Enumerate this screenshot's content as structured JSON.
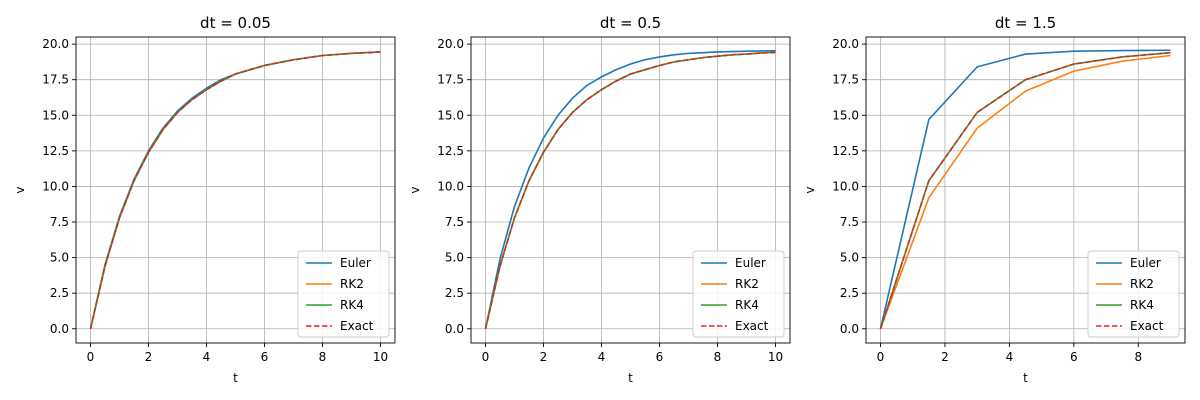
{
  "chart_data": [
    {
      "type": "line",
      "title": "dt = 0.05",
      "xlabel": "t",
      "ylabel": "v",
      "xlim": [
        -0.5,
        10.5
      ],
      "ylim": [
        -1.0,
        20.5
      ],
      "x_ticks": [
        0,
        2,
        4,
        6,
        8,
        10
      ],
      "x_tick_labels": [
        "0",
        "2",
        "4",
        "6",
        "8",
        "10"
      ],
      "y_ticks": [
        0,
        2.5,
        5,
        7.5,
        10,
        12.5,
        15,
        17.5,
        20
      ],
      "y_tick_labels": [
        "0.0",
        "2.5",
        "5.0",
        "7.5",
        "10.0",
        "12.5",
        "15.0",
        "17.5",
        "20.0"
      ],
      "grid": true,
      "legend_position": "lower right",
      "series": [
        {
          "name": "Euler",
          "color": "#1f77b4",
          "style": "solid",
          "x": [
            0,
            0.5,
            1,
            1.5,
            2,
            2.5,
            3,
            3.5,
            4,
            4.5,
            5,
            6,
            7,
            8,
            9,
            10
          ],
          "y": [
            0,
            4.5,
            7.9,
            10.5,
            12.5,
            14.1,
            15.3,
            16.2,
            16.9,
            17.5,
            17.9,
            18.5,
            18.9,
            19.2,
            19.35,
            19.45
          ]
        },
        {
          "name": "RK2",
          "color": "#ff7f0e",
          "style": "solid",
          "x": [
            0,
            0.5,
            1,
            1.5,
            2,
            2.5,
            3,
            3.5,
            4,
            4.5,
            5,
            6,
            7,
            8,
            9,
            10
          ],
          "y": [
            0,
            4.4,
            7.8,
            10.4,
            12.4,
            14.0,
            15.2,
            16.1,
            16.8,
            17.4,
            17.9,
            18.5,
            18.9,
            19.2,
            19.35,
            19.45
          ]
        },
        {
          "name": "RK4",
          "color": "#2ca02c",
          "style": "solid",
          "x": [
            0,
            0.5,
            1,
            1.5,
            2,
            2.5,
            3,
            3.5,
            4,
            4.5,
            5,
            6,
            7,
            8,
            9,
            10
          ],
          "y": [
            0,
            4.4,
            7.8,
            10.4,
            12.4,
            14.0,
            15.2,
            16.1,
            16.8,
            17.4,
            17.9,
            18.5,
            18.9,
            19.2,
            19.35,
            19.45
          ]
        },
        {
          "name": "Exact",
          "color": "#d62728",
          "style": "dashed",
          "x": [
            0,
            0.5,
            1,
            1.5,
            2,
            2.5,
            3,
            3.5,
            4,
            4.5,
            5,
            6,
            7,
            8,
            9,
            10
          ],
          "y": [
            0,
            4.4,
            7.8,
            10.4,
            12.4,
            14.0,
            15.2,
            16.1,
            16.8,
            17.4,
            17.9,
            18.5,
            18.9,
            19.2,
            19.35,
            19.45
          ]
        }
      ]
    },
    {
      "type": "line",
      "title": "dt = 0.5",
      "xlabel": "t",
      "ylabel": "v",
      "xlim": [
        -0.5,
        10.5
      ],
      "ylim": [
        -1.0,
        20.5
      ],
      "x_ticks": [
        0,
        2,
        4,
        6,
        8,
        10
      ],
      "x_tick_labels": [
        "0",
        "2",
        "4",
        "6",
        "8",
        "10"
      ],
      "y_ticks": [
        0,
        2.5,
        5,
        7.5,
        10,
        12.5,
        15,
        17.5,
        20
      ],
      "y_tick_labels": [
        "0.0",
        "2.5",
        "5.0",
        "7.5",
        "10.0",
        "12.5",
        "15.0",
        "17.5",
        "20.0"
      ],
      "grid": true,
      "legend_position": "lower right",
      "series": [
        {
          "name": "Euler",
          "color": "#1f77b4",
          "style": "solid",
          "x": [
            0,
            0.5,
            1,
            1.5,
            2,
            2.5,
            3,
            3.5,
            4,
            4.5,
            5,
            5.5,
            6,
            6.5,
            7,
            7.5,
            8,
            8.5,
            9,
            9.5,
            10
          ],
          "y": [
            0,
            4.9,
            8.6,
            11.3,
            13.4,
            15.0,
            16.2,
            17.1,
            17.7,
            18.2,
            18.6,
            18.9,
            19.1,
            19.25,
            19.35,
            19.4,
            19.45,
            19.48,
            19.5,
            19.52,
            19.53
          ]
        },
        {
          "name": "RK2",
          "color": "#ff7f0e",
          "style": "solid",
          "x": [
            0,
            0.5,
            1,
            1.5,
            2,
            2.5,
            3,
            3.5,
            4,
            4.5,
            5,
            5.5,
            6,
            6.5,
            7,
            7.5,
            8,
            8.5,
            9,
            9.5,
            10
          ],
          "y": [
            0,
            4.4,
            7.8,
            10.4,
            12.4,
            14.0,
            15.2,
            16.1,
            16.8,
            17.4,
            17.9,
            18.2,
            18.5,
            18.75,
            18.9,
            19.05,
            19.15,
            19.25,
            19.3,
            19.38,
            19.42
          ]
        },
        {
          "name": "RK4",
          "color": "#2ca02c",
          "style": "solid",
          "x": [
            0,
            0.5,
            1,
            1.5,
            2,
            2.5,
            3,
            3.5,
            4,
            4.5,
            5,
            5.5,
            6,
            6.5,
            7,
            7.5,
            8,
            8.5,
            9,
            9.5,
            10
          ],
          "y": [
            0,
            4.4,
            7.8,
            10.4,
            12.4,
            14.0,
            15.2,
            16.1,
            16.8,
            17.4,
            17.9,
            18.2,
            18.5,
            18.75,
            18.9,
            19.05,
            19.15,
            19.25,
            19.3,
            19.38,
            19.42
          ]
        },
        {
          "name": "Exact",
          "color": "#d62728",
          "style": "dashed",
          "x": [
            0,
            0.5,
            1,
            1.5,
            2,
            2.5,
            3,
            3.5,
            4,
            4.5,
            5,
            5.5,
            6,
            6.5,
            7,
            7.5,
            8,
            8.5,
            9,
            9.5,
            10
          ],
          "y": [
            0,
            4.4,
            7.8,
            10.4,
            12.4,
            14.0,
            15.2,
            16.1,
            16.8,
            17.4,
            17.9,
            18.2,
            18.5,
            18.75,
            18.9,
            19.05,
            19.15,
            19.25,
            19.3,
            19.38,
            19.42
          ]
        }
      ]
    },
    {
      "type": "line",
      "title": "dt = 1.5",
      "xlabel": "t",
      "ylabel": "v",
      "xlim": [
        -0.45,
        9.45
      ],
      "ylim": [
        -1.0,
        20.5
      ],
      "x_ticks": [
        0,
        2,
        4,
        6,
        8
      ],
      "x_tick_labels": [
        "0",
        "2",
        "4",
        "6",
        "8"
      ],
      "y_ticks": [
        0,
        2.5,
        5,
        7.5,
        10,
        12.5,
        15,
        17.5,
        20
      ],
      "y_tick_labels": [
        "0.0",
        "2.5",
        "5.0",
        "7.5",
        "10.0",
        "12.5",
        "15.0",
        "17.5",
        "20.0"
      ],
      "grid": true,
      "legend_position": "lower right",
      "series": [
        {
          "name": "Euler",
          "color": "#1f77b4",
          "style": "solid",
          "x": [
            0,
            1.5,
            3,
            4.5,
            6,
            7.5,
            9
          ],
          "y": [
            0,
            14.7,
            18.4,
            19.3,
            19.5,
            19.55,
            19.57
          ]
        },
        {
          "name": "RK2",
          "color": "#ff7f0e",
          "style": "solid",
          "x": [
            0,
            1.5,
            3,
            4.5,
            6,
            7.5,
            9
          ],
          "y": [
            0,
            9.2,
            14.1,
            16.7,
            18.1,
            18.8,
            19.2
          ]
        },
        {
          "name": "RK4",
          "color": "#2ca02c",
          "style": "solid",
          "x": [
            0,
            1.5,
            3,
            4.5,
            6,
            7.5,
            9
          ],
          "y": [
            0,
            10.4,
            15.2,
            17.5,
            18.6,
            19.1,
            19.4
          ]
        },
        {
          "name": "Exact",
          "color": "#d62728",
          "style": "dashed",
          "x": [
            0,
            1.5,
            3,
            4.5,
            6,
            7.5,
            9
          ],
          "y": [
            0,
            10.4,
            15.2,
            17.5,
            18.6,
            19.1,
            19.4
          ]
        }
      ]
    }
  ]
}
